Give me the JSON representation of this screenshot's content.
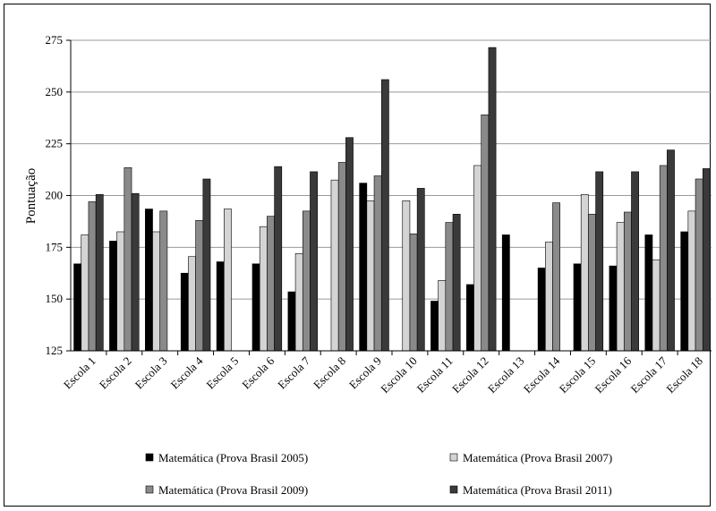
{
  "chart_data": {
    "type": "bar",
    "title": "",
    "xlabel": "",
    "ylabel": "Pontuação",
    "ylim": [
      125,
      275
    ],
    "yticks": [
      125,
      150,
      175,
      200,
      225,
      250,
      275
    ],
    "grid": true,
    "legend_position": "bottom",
    "categories": [
      "Escola 1",
      "Escola 2",
      "Escola 3",
      "Escola 4",
      "Escola 5",
      "Escola 6",
      "Escola 7",
      "Escola 8",
      "Escola 9",
      "Escola 10",
      "Escola 11",
      "Escola 12",
      "Escola 13",
      "Escola 14",
      "Escola 15",
      "Escola 16",
      "Escola 17",
      "Escola 18"
    ],
    "series": [
      {
        "name": "Matemática (Prova Brasil 2005)",
        "color": "#000000",
        "values": [
          167,
          178,
          193.5,
          162.5,
          168,
          167,
          153.5,
          null,
          206,
          null,
          149,
          157,
          181,
          165,
          167,
          166,
          181,
          182.5
        ]
      },
      {
        "name": "Matemática (Prova Brasil 2007)",
        "color": "#d4d4d4",
        "values": [
          181,
          182.5,
          182.5,
          170.5,
          193.5,
          185,
          172,
          207.5,
          197.5,
          197.5,
          159,
          214.5,
          null,
          177.5,
          200.5,
          187,
          169,
          192.5
        ]
      },
      {
        "name": "Matemática (Prova Brasil 2009)",
        "color": "#8a8a8a",
        "values": [
          197,
          213.5,
          192.5,
          188,
          null,
          190,
          192.5,
          216,
          209.5,
          181.5,
          187,
          239,
          null,
          196.5,
          191,
          192,
          214.5,
          208
        ]
      },
      {
        "name": "Matemática (Prova Brasil 2011)",
        "color": "#3a3a3a",
        "values": [
          200.5,
          201,
          null,
          208,
          null,
          214,
          211.5,
          228,
          256,
          203.5,
          191,
          271.5,
          null,
          null,
          211.5,
          211.5,
          222,
          213
        ]
      }
    ]
  }
}
